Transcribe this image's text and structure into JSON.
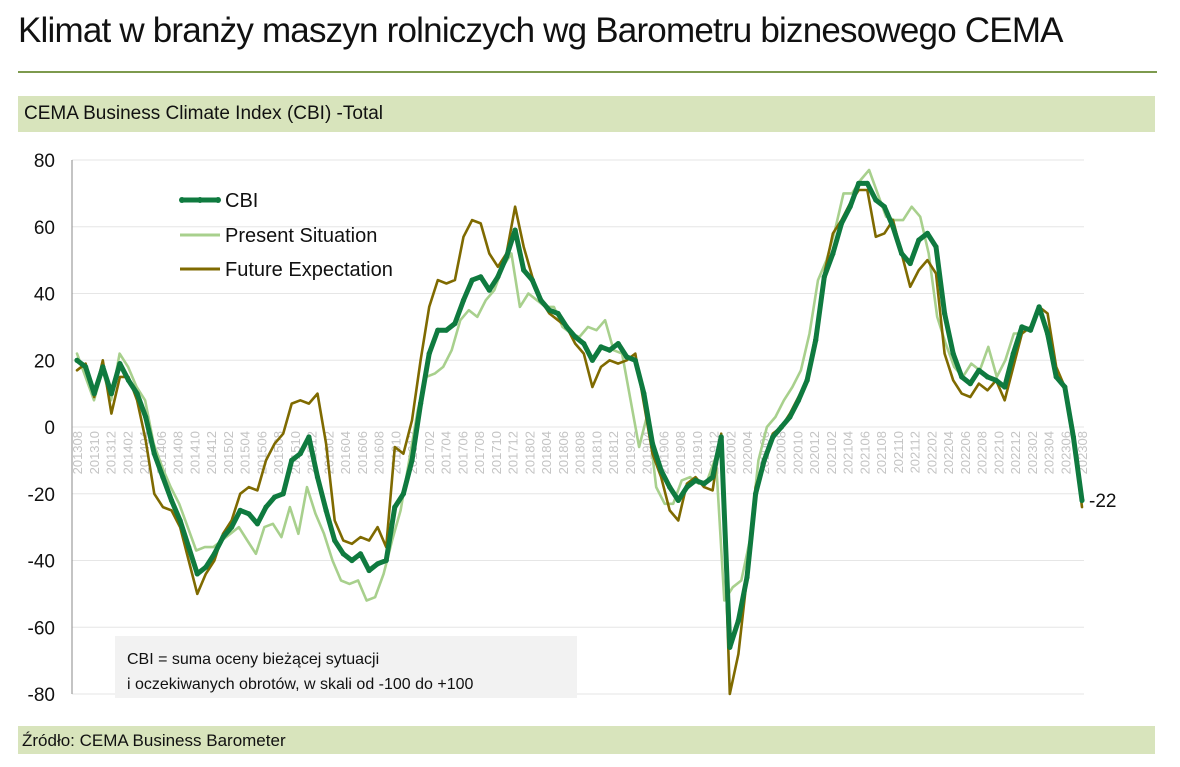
{
  "header": {
    "title": "Klimat w branży maszyn rolniczych wg Barometru biznesowego CEMA",
    "subtitle": "CEMA Business Climate Index (CBI) -Total"
  },
  "footer": {
    "source": "Źródło: CEMA Business Barometer"
  },
  "colors": {
    "cbi": "#0f7a3f",
    "present": "#a8d08d",
    "future": "#7f6a00",
    "band": "#d8e4bc",
    "note_bg": "#f2f2f2"
  },
  "chart_data": {
    "type": "line",
    "ylim": [
      -80,
      80
    ],
    "yticks": [
      "80",
      "60",
      "40",
      "20",
      "0",
      "-20",
      "-40",
      "-60",
      "-80"
    ],
    "grid": true,
    "legend_position": "top-left",
    "end_label": "-22",
    "note": {
      "line1": "CBI = suma oceny bieżącej sytuacji",
      "line2": "i oczekiwanych obrotów, w skali od -100 do +100"
    },
    "xticks": [
      "201308",
      "201310",
      "201312",
      "201402",
      "201404",
      "201406",
      "201408",
      "201410",
      "201412",
      "201502",
      "201504",
      "201506",
      "201508",
      "201510",
      "201512",
      "201602",
      "201604",
      "201606",
      "201608",
      "201610",
      "201612",
      "201702",
      "201704",
      "201706",
      "201708",
      "201710",
      "201712",
      "201802",
      "201804",
      "201806",
      "201808",
      "201810",
      "201812",
      "201902",
      "201904",
      "201906",
      "201908",
      "201910",
      "201912",
      "202002",
      "202004",
      "202006",
      "202008",
      "202010",
      "202012",
      "202102",
      "202104",
      "202106",
      "202108",
      "202110",
      "202112",
      "202202",
      "202204",
      "202206",
      "202208",
      "202210",
      "202212",
      "202302",
      "202304",
      "202306",
      "202308"
    ],
    "series": [
      {
        "name": "CBI",
        "values": [
          20,
          18,
          10,
          18,
          10,
          19,
          14,
          10,
          3,
          -8,
          -15,
          -22,
          -28,
          -36,
          -44,
          -42,
          -38,
          -33,
          -30,
          -25,
          -26,
          -29,
          -24,
          -21,
          -20,
          -10,
          -8,
          -3,
          -15,
          -25,
          -34,
          -38,
          -40,
          -38,
          -43,
          -41,
          -40,
          -24,
          -20,
          -10,
          7,
          22,
          29,
          29,
          31,
          38,
          44,
          45,
          41,
          45,
          51,
          59,
          47,
          44,
          38,
          35,
          34,
          30,
          27,
          25,
          20,
          24,
          23,
          25,
          21,
          20,
          10,
          -5,
          -13,
          -18,
          -22,
          -18,
          -16,
          -17,
          -15,
          -3,
          -66,
          -58,
          -45,
          -20,
          -10,
          -3,
          0,
          3,
          8,
          14,
          26,
          45,
          52,
          61,
          66,
          73,
          73,
          68,
          66,
          60,
          52,
          49,
          56,
          58,
          54,
          34,
          22,
          15,
          13,
          17,
          15,
          14,
          12,
          22,
          30,
          29,
          36,
          28,
          15,
          12,
          -3,
          -22
        ]
      },
      {
        "name": "Present Situation",
        "values": [
          22,
          15,
          8,
          17,
          8,
          22,
          18,
          12,
          8,
          -5,
          -12,
          -18,
          -23,
          -30,
          -37,
          -36,
          -36,
          -34,
          -32,
          -30,
          -34,
          -38,
          -30,
          -29,
          -33,
          -24,
          -32,
          -18,
          -26,
          -32,
          -40,
          -46,
          -47,
          -46,
          -52,
          -51,
          -44,
          -34,
          -25,
          -10,
          5,
          15,
          16,
          18,
          23,
          32,
          35,
          33,
          38,
          41,
          48,
          52,
          36,
          40,
          38,
          36,
          36,
          30,
          28,
          27,
          30,
          29,
          32,
          23,
          22,
          8,
          -6,
          4,
          -18,
          -23,
          -23,
          -16,
          -15,
          -17,
          -16,
          -9,
          -52,
          -48,
          -46,
          -34,
          -10,
          0,
          3,
          8,
          12,
          17,
          28,
          44,
          50,
          59,
          70,
          70,
          74,
          77,
          70,
          63,
          62,
          62,
          66,
          63,
          52,
          33,
          25,
          18,
          15,
          19,
          17,
          24,
          15,
          20,
          28,
          28,
          30,
          36,
          26,
          16,
          12,
          -1,
          -21
        ]
      },
      {
        "name": "Future Expectation",
        "values": [
          17,
          19,
          9,
          20,
          4,
          15,
          15,
          8,
          -4,
          -20,
          -24,
          -25,
          -30,
          -40,
          -50,
          -44,
          -40,
          -32,
          -28,
          -20,
          -18,
          -19,
          -10,
          -5,
          -2,
          7,
          8,
          7,
          10,
          -5,
          -28,
          -34,
          -35,
          -33,
          -34,
          -30,
          -36,
          -6,
          -8,
          2,
          20,
          36,
          44,
          43,
          44,
          57,
          62,
          61,
          52,
          48,
          52,
          66,
          54,
          45,
          38,
          34,
          32,
          30,
          25,
          22,
          12,
          18,
          20,
          19,
          20,
          22,
          7,
          -8,
          -15,
          -25,
          -28,
          -17,
          -15,
          -18,
          -19,
          -2,
          -80,
          -68,
          -45,
          -18,
          -10,
          -2,
          0,
          4,
          9,
          14,
          28,
          46,
          58,
          62,
          67,
          71,
          71,
          57,
          58,
          62,
          52,
          42,
          47,
          50,
          46,
          22,
          14,
          10,
          9,
          13,
          11,
          14,
          8,
          18,
          28,
          30,
          36,
          34,
          18,
          12,
          -3,
          -24
        ]
      }
    ]
  }
}
